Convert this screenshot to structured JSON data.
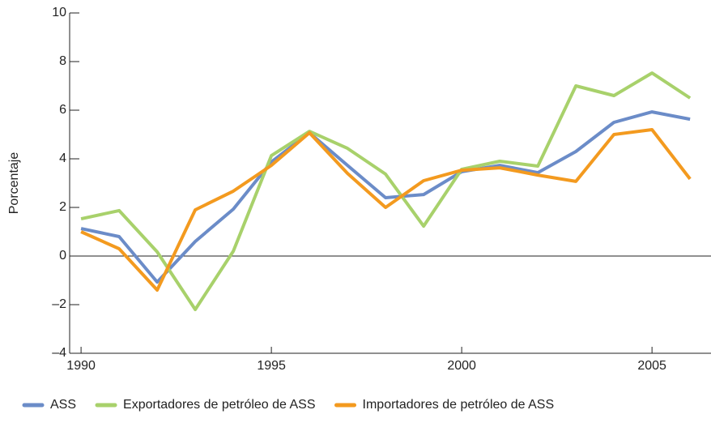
{
  "chart_data": {
    "type": "line",
    "ylabel": "Porcentaje",
    "x": [
      1990,
      1991,
      1992,
      1993,
      1994,
      1995,
      1996,
      1997,
      1998,
      1999,
      2000,
      2001,
      2002,
      2003,
      2004,
      2005,
      2006
    ],
    "xlim": [
      1989.7,
      2006.55
    ],
    "xticks": [
      1990,
      1995,
      2000,
      2005
    ],
    "ylim": [
      -4,
      10
    ],
    "yticks": [
      {
        "value": -4,
        "label": "–4"
      },
      {
        "value": -2,
        "label": "–2"
      },
      0,
      2,
      4,
      6,
      8,
      10
    ],
    "legend": "bottom",
    "series": [
      {
        "name": "ASS",
        "color": "#6b8cc8",
        "values": [
          1.13,
          0.8,
          -1.07,
          0.6,
          1.93,
          3.87,
          5.07,
          3.73,
          2.4,
          2.53,
          3.47,
          3.73,
          3.43,
          4.3,
          5.5,
          5.93,
          5.63
        ]
      },
      {
        "name": "Exportadores de petróleo de ASS",
        "color": "#a8d16b",
        "values": [
          1.53,
          1.87,
          0.17,
          -2.2,
          0.2,
          4.13,
          5.13,
          4.43,
          3.37,
          1.23,
          3.57,
          3.9,
          3.7,
          7.0,
          6.6,
          7.53,
          6.5
        ]
      },
      {
        "name": "Importadores de petróleo de ASS",
        "color": "#f39a1f",
        "values": [
          1.0,
          0.3,
          -1.4,
          1.9,
          2.67,
          3.73,
          5.07,
          3.4,
          2.0,
          3.1,
          3.53,
          3.63,
          3.33,
          3.07,
          5.0,
          5.2,
          3.17
        ]
      }
    ]
  }
}
